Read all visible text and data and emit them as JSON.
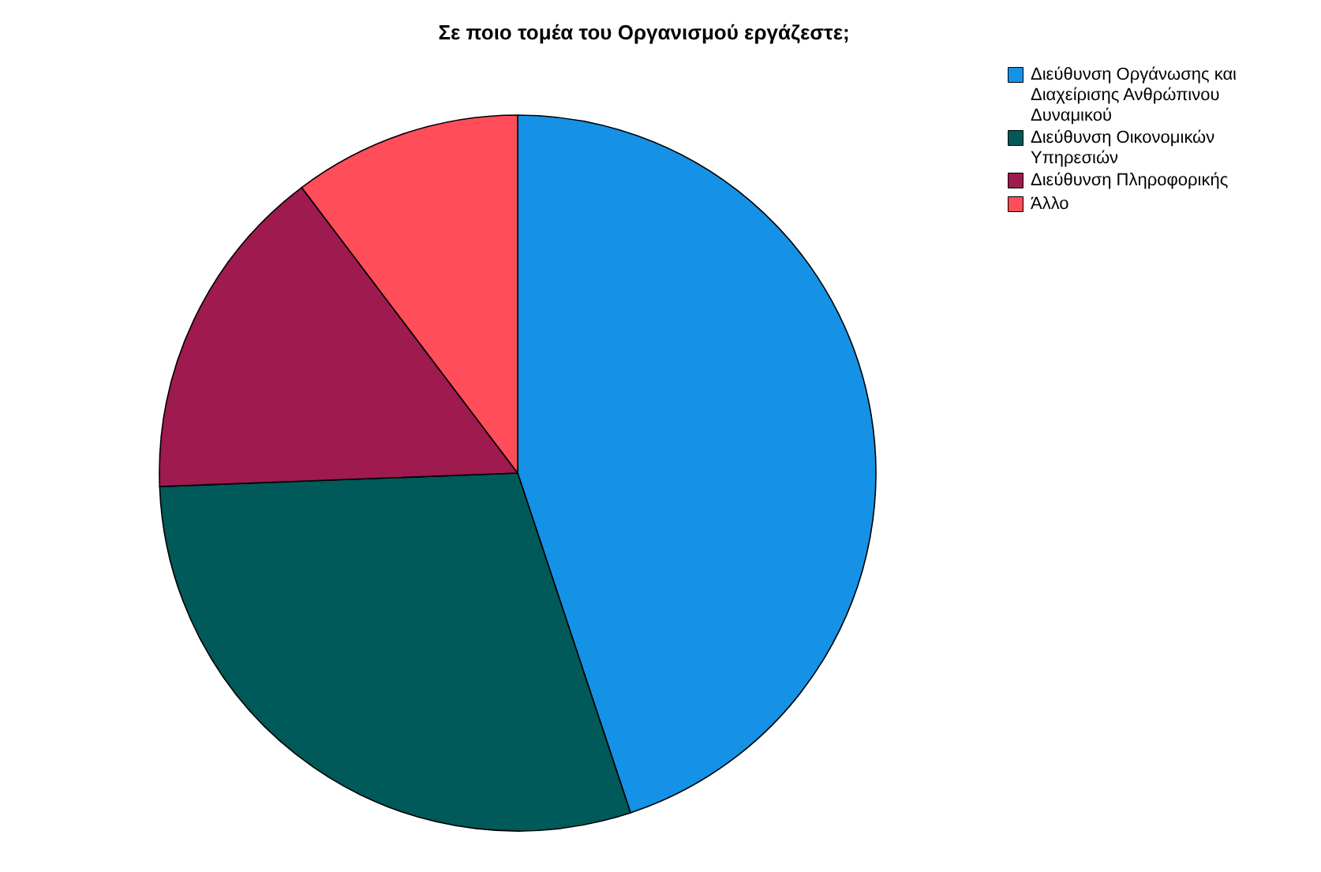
{
  "chart_data": {
    "type": "pie",
    "title": "Σε ποιο τομέα του Οργανισμού εργάζεστε;",
    "categories": [
      "Διεύθυνση Οργάνωσης και Διαχείρισης Ανθρώπινου Δυναμικού",
      "Διεύθυνση Οικονομικών Υπηρεσιών",
      "Διεύθυνση Πληροφορικής",
      "Άλλο"
    ],
    "values": [
      44.9,
      29.5,
      15.3,
      10.3
    ],
    "colors": [
      "#1591e6",
      "#005a5a",
      "#9e1a4f",
      "#ff4d5a"
    ],
    "legend": "top right"
  }
}
